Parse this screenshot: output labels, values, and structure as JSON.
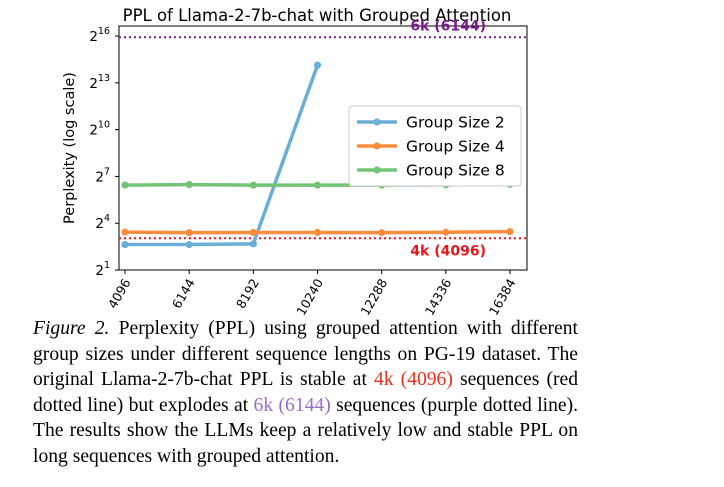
{
  "chart_data": {
    "type": "line",
    "title": "PPL of Llama-2-7b-chat with Grouped Attention",
    "xlabel": "",
    "ylabel": "Perplexity (log scale)",
    "y_scale": "log2",
    "y_ticks": [
      {
        "value": 2,
        "base": "2",
        "exp": "1"
      },
      {
        "value": 16,
        "base": "2",
        "exp": "4"
      },
      {
        "value": 128,
        "base": "2",
        "exp": "7"
      },
      {
        "value": 1024,
        "base": "2",
        "exp": "10"
      },
      {
        "value": 8192,
        "base": "2",
        "exp": "13"
      },
      {
        "value": 65536,
        "base": "2",
        "exp": "16"
      }
    ],
    "ylim": [
      2,
      102400
    ],
    "categories": [
      "4096",
      "6144",
      "8192",
      "10240",
      "12288",
      "14336",
      "16384"
    ],
    "series": [
      {
        "name": "Group Size 2",
        "color": "#6baed6",
        "values": [
          6.2,
          6.2,
          6.4,
          18000,
          null,
          null,
          null
        ]
      },
      {
        "name": "Group Size 4",
        "color": "#fd8d3c",
        "values": [
          10.8,
          10.5,
          10.6,
          10.6,
          10.5,
          10.7,
          11.0
        ]
      },
      {
        "name": "Group Size 8",
        "color": "#74c476",
        "values": [
          87,
          89,
          87,
          87,
          87,
          88,
          90
        ]
      }
    ],
    "reference_lines": [
      {
        "label": "6k (6144)",
        "value": 62000,
        "color": "#7b1a8c"
      },
      {
        "label": "4k (4096)",
        "value": 8.2,
        "color": "#e8151b"
      }
    ],
    "legend_position": "right",
    "grid": false
  },
  "caption": {
    "label": "Figure 2.",
    "part1": " Perplexity (PPL) using grouped attention with different group sizes under different sequence lengths on PG-19 dataset. The original Llama-2-7b-chat PPL is stable at ",
    "red_text": "4k (4096)",
    "part2": " sequences (red dotted line) but explodes at ",
    "purple_text": "6k (6144)",
    "part3": " sequences (purple dotted line). The results show the LLMs keep a relatively low and stable PPL on long sequences with grouped attention."
  }
}
